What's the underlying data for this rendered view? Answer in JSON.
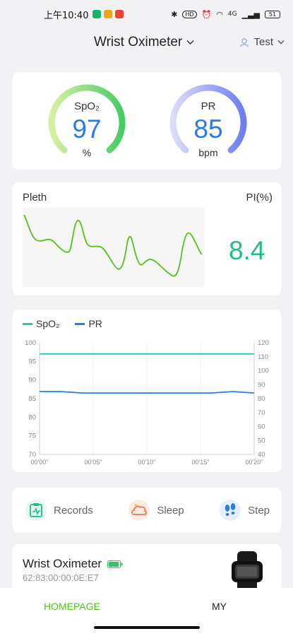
{
  "status_bar": {
    "time": "上午10:40",
    "signal": "4G",
    "battery_level": "51",
    "app_badge_colors": [
      "#16b36a",
      "#f5a21b",
      "#e8452c"
    ]
  },
  "header": {
    "title": "Wrist Oximeter",
    "user": "Test"
  },
  "gauges": {
    "spo2": {
      "label": "SpO₂",
      "value": "97",
      "unit": "%",
      "value_color": "#2a7be4",
      "level": 0.97
    },
    "pr": {
      "label": "PR",
      "value": "85",
      "unit": "bpm",
      "value_color": "#2a7be4",
      "level": 0.85
    }
  },
  "pleth": {
    "label": "Pleth",
    "pi_label": "PI(%)",
    "pi_value": "8.4",
    "wave_color": "#55c21a",
    "pi_color": "#1dbf87"
  },
  "chart_data": {
    "type": "line",
    "x_labels": [
      "00'00\"",
      "00'05\"",
      "00'10\"",
      "00'15\"",
      "00'20\""
    ],
    "x": [
      0,
      2,
      4,
      6,
      8,
      10,
      12,
      14,
      16,
      18,
      20
    ],
    "y_left_ticks": [
      100,
      95,
      90,
      85,
      80,
      75,
      70
    ],
    "y_right_ticks": [
      120,
      110,
      100,
      90,
      80,
      70,
      60,
      50,
      40
    ],
    "ylim_left": [
      70,
      100
    ],
    "ylim_right": [
      40,
      120
    ],
    "legend_position": "top-left",
    "grid": "vertical only",
    "series": [
      {
        "name": "SpO₂",
        "axis": "left",
        "color": "#25c8b4",
        "values": [
          97,
          97,
          97,
          97,
          97,
          97,
          97,
          97,
          97,
          97,
          97
        ]
      },
      {
        "name": "PR",
        "axis": "right",
        "color": "#2a7be4",
        "values": [
          85,
          85,
          84,
          84,
          84,
          84,
          84,
          84,
          84,
          85,
          84
        ]
      }
    ]
  },
  "quick_nav": [
    {
      "label": "Records",
      "icon": "records-icon",
      "color": "#1dbf87"
    },
    {
      "label": "Sleep",
      "icon": "sleep-icon",
      "color": "#f07b4b"
    },
    {
      "label": "Step",
      "icon": "step-icon",
      "color": "#2a7be4"
    }
  ],
  "device": {
    "name": "Wrist Oximeter",
    "mac": "62:83:00:00:0E:E7",
    "battery_color": "#2fc36a"
  },
  "tabs": [
    {
      "label": "HOMEPAGE",
      "active": true,
      "color": "#55c21a"
    },
    {
      "label": "MY",
      "active": false,
      "color": "#222222"
    }
  ]
}
